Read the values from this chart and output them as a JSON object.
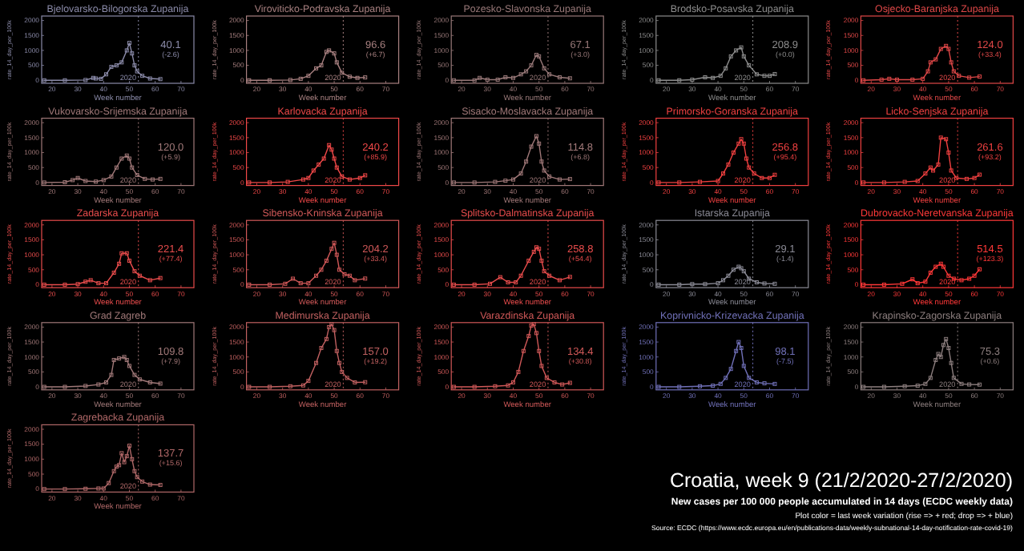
{
  "chart_data": [
    {
      "type": "line",
      "title": "Bjelovarsko-Bilogorska Zupanija",
      "xlabel": "Week number",
      "ylabel": "rate_14_day_per_100k",
      "xlim": [
        16,
        75
      ],
      "xticks": [
        20,
        30,
        40,
        50,
        60,
        70
      ],
      "ylim": [
        -100,
        2150
      ],
      "yticks": [
        0,
        500,
        1000,
        1500,
        2000
      ],
      "marker": "square",
      "ref_lines": [
        {
          "axis": "x",
          "value": 53.5,
          "line_style": "dotted"
        }
      ],
      "annotations": [
        "40.1",
        "(-2.6)",
        "2020"
      ],
      "series": [
        {
          "color": "#8a8aa8",
          "x": [
            17,
            25,
            33,
            36,
            37,
            39,
            41,
            43,
            45,
            47,
            49,
            50,
            51,
            52,
            53,
            55,
            58,
            62
          ],
          "values": [
            0,
            0,
            10,
            80,
            60,
            50,
            200,
            450,
            500,
            600,
            1000,
            1250,
            900,
            500,
            300,
            150,
            60,
            40.1
          ]
        }
      ]
    },
    {
      "type": "line",
      "title": "Viroviticko-Podravska Zupanija",
      "xlabel": "Week number",
      "ylabel": "rate_14_day_per_100k",
      "xlim": [
        16,
        75
      ],
      "xticks": [
        20,
        30,
        40,
        50,
        60,
        70
      ],
      "ylim": [
        -100,
        2150
      ],
      "yticks": [
        0,
        500,
        1000,
        1500,
        2000
      ],
      "marker": "square",
      "ref_lines": [
        {
          "axis": "x",
          "value": 53.5,
          "line_style": "dotted"
        }
      ],
      "annotations": [
        "96.6",
        "(+6.7)",
        "2020"
      ],
      "series": [
        {
          "color": "#a88080",
          "x": [
            17,
            25,
            33,
            37,
            40,
            43,
            45,
            47,
            48,
            50,
            51,
            53,
            56,
            59,
            62
          ],
          "values": [
            0,
            0,
            10,
            50,
            150,
            400,
            500,
            950,
            1000,
            900,
            600,
            250,
            120,
            80,
            96.6
          ]
        }
      ]
    },
    {
      "type": "line",
      "title": "Pozesko-Slavonska Zupanija",
      "xlabel": "Week number",
      "ylabel": "rate_14_day_per_100k",
      "xlim": [
        16,
        75
      ],
      "xticks": [
        20,
        30,
        40,
        50,
        60,
        70
      ],
      "ylim": [
        -100,
        2150
      ],
      "yticks": [
        0,
        500,
        1000,
        1500,
        2000
      ],
      "marker": "square",
      "ref_lines": [
        {
          "axis": "x",
          "value": 53.5,
          "line_style": "dotted"
        }
      ],
      "annotations": [
        "67.1",
        "(+3.0)",
        "2020"
      ],
      "series": [
        {
          "color": "#987878",
          "x": [
            17,
            25,
            27,
            30,
            34,
            37,
            40,
            43,
            45,
            47,
            49,
            50,
            52,
            54,
            58,
            62
          ],
          "values": [
            0,
            0,
            80,
            20,
            20,
            100,
            80,
            200,
            300,
            500,
            850,
            800,
            400,
            200,
            100,
            67.1
          ]
        }
      ]
    },
    {
      "type": "line",
      "title": "Brodsko-Posavska Zupanija",
      "xlabel": "Week number",
      "ylabel": "rate_14_day_per_100k",
      "xlim": [
        16,
        75
      ],
      "xticks": [
        20,
        30,
        40,
        50,
        60,
        70
      ],
      "ylim": [
        -100,
        2150
      ],
      "yticks": [
        0,
        500,
        1000,
        1500,
        2000
      ],
      "marker": "square",
      "ref_lines": [
        {
          "axis": "x",
          "value": 53.5,
          "line_style": "dotted"
        }
      ],
      "annotations": [
        "208.9",
        "(+0.0)",
        "2020"
      ],
      "series": [
        {
          "color": "#8c8c8c",
          "x": [
            17,
            25,
            30,
            35,
            38,
            41,
            43,
            45,
            47,
            49,
            50,
            52,
            55,
            58,
            60,
            62
          ],
          "values": [
            0,
            0,
            20,
            100,
            80,
            150,
            400,
            800,
            1000,
            1100,
            800,
            500,
            200,
            150,
            150,
            208.9
          ]
        }
      ]
    },
    {
      "type": "line",
      "title": "Osjecko-Baranjska Zupanija",
      "xlabel": "Week number",
      "ylabel": "rate_14_day_per_100k",
      "xlim": [
        16,
        75
      ],
      "xticks": [
        20,
        30,
        40,
        50,
        60,
        70
      ],
      "ylim": [
        -100,
        2150
      ],
      "yticks": [
        0,
        500,
        1000,
        1500,
        2000
      ],
      "marker": "square",
      "ref_lines": [
        {
          "axis": "x",
          "value": 53.5,
          "line_style": "dotted"
        }
      ],
      "annotations": [
        "124.0",
        "(+33.4)",
        "2020"
      ],
      "series": [
        {
          "color": "#e04848",
          "x": [
            17,
            24,
            27,
            30,
            36,
            40,
            42,
            43,
            45,
            47,
            49,
            50,
            51,
            52,
            54,
            58,
            62
          ],
          "values": [
            0,
            20,
            50,
            20,
            20,
            50,
            300,
            600,
            700,
            1050,
            1150,
            1050,
            600,
            300,
            150,
            90,
            124
          ]
        }
      ]
    },
    {
      "type": "line",
      "title": "Vukovarsko-Srijemska Zupanija",
      "xlabel": "Week number",
      "ylabel": "rate_14_day_per_100k",
      "xlim": [
        16,
        75
      ],
      "xticks": [
        20,
        30,
        40,
        50,
        60,
        70
      ],
      "ylim": [
        -100,
        2150
      ],
      "yticks": [
        0,
        500,
        1000,
        1500,
        2000
      ],
      "marker": "square",
      "ref_lines": [
        {
          "axis": "x",
          "value": 53.5,
          "line_style": "dotted"
        }
      ],
      "annotations": [
        "120.0",
        "(+5.9)",
        "2020"
      ],
      "series": [
        {
          "color": "#a07878",
          "x": [
            17,
            25,
            28,
            30,
            33,
            37,
            40,
            43,
            45,
            47,
            49,
            50,
            51,
            53,
            56,
            59,
            62
          ],
          "values": [
            0,
            10,
            80,
            150,
            50,
            30,
            80,
            200,
            500,
            800,
            900,
            800,
            500,
            250,
            120,
            100,
            120
          ]
        }
      ]
    },
    {
      "type": "line",
      "title": "Karlovacka Zupanija",
      "xlabel": "Week number",
      "ylabel": "rate_14_day_per_100k",
      "xlim": [
        16,
        75
      ],
      "xticks": [
        20,
        30,
        40,
        50,
        60,
        70
      ],
      "ylim": [
        -100,
        2150
      ],
      "yticks": [
        0,
        500,
        1000,
        1500,
        2000
      ],
      "marker": "square",
      "ref_lines": [
        {
          "axis": "x",
          "value": 53.5,
          "line_style": "dotted"
        }
      ],
      "annotations": [
        "240.2",
        "(+85.9)",
        "2020"
      ],
      "series": [
        {
          "color": "#f04848",
          "x": [
            17,
            25,
            32,
            38,
            40,
            42,
            44,
            46,
            48,
            49,
            50,
            51,
            53,
            56,
            60,
            62
          ],
          "values": [
            0,
            0,
            20,
            100,
            150,
            400,
            600,
            800,
            1250,
            1100,
            800,
            500,
            200,
            100,
            150,
            240.2
          ]
        }
      ]
    },
    {
      "type": "line",
      "title": "Sisacko-Moslavacka Zupanija",
      "xlabel": "Week number",
      "ylabel": "rate_14_day_per_100k",
      "xlim": [
        16,
        75
      ],
      "xticks": [
        20,
        30,
        40,
        50,
        60,
        70
      ],
      "ylim": [
        -100,
        2150
      ],
      "yticks": [
        0,
        500,
        1000,
        1500,
        2000
      ],
      "marker": "square",
      "ref_lines": [
        {
          "axis": "x",
          "value": 53.5,
          "line_style": "dotted"
        }
      ],
      "annotations": [
        "114.8",
        "(+6.8)",
        "2020"
      ],
      "series": [
        {
          "color": "#a07878",
          "x": [
            17,
            25,
            33,
            37,
            40,
            43,
            45,
            47,
            49,
            50,
            51,
            52,
            54,
            58,
            62
          ],
          "values": [
            0,
            0,
            20,
            60,
            100,
            300,
            700,
            1200,
            1550,
            1300,
            700,
            400,
            200,
            100,
            114.8
          ]
        }
      ]
    },
    {
      "type": "line",
      "title": "Primorsko-Goranska Zupanija",
      "xlabel": "Week number",
      "ylabel": "rate_14_day_per_100k",
      "xlim": [
        16,
        75
      ],
      "xticks": [
        20,
        30,
        40,
        50,
        60,
        70
      ],
      "ylim": [
        -100,
        2150
      ],
      "yticks": [
        0,
        500,
        1000,
        1500,
        2000
      ],
      "marker": "square",
      "ref_lines": [
        {
          "axis": "x",
          "value": 53.5,
          "line_style": "dotted"
        }
      ],
      "annotations": [
        "256.8",
        "(+95.4)",
        "2020"
      ],
      "series": [
        {
          "color": "#f04040",
          "x": [
            17,
            25,
            33,
            40,
            42,
            44,
            46,
            48,
            49,
            50,
            51,
            52,
            54,
            57,
            60,
            62
          ],
          "values": [
            0,
            0,
            20,
            50,
            300,
            600,
            1000,
            1300,
            1450,
            1300,
            800,
            500,
            300,
            150,
            150,
            256.8
          ]
        }
      ]
    },
    {
      "type": "line",
      "title": "Licko-Senjska Zupanija",
      "xlabel": "Week number",
      "ylabel": "rate_14_day_per_100k",
      "xlim": [
        16,
        75
      ],
      "xticks": [
        20,
        30,
        40,
        50,
        60,
        70
      ],
      "ylim": [
        -100,
        2150
      ],
      "yticks": [
        0,
        500,
        1000,
        1500,
        2000
      ],
      "marker": "square",
      "ref_lines": [
        {
          "axis": "x",
          "value": 53.5,
          "line_style": "dotted"
        }
      ],
      "annotations": [
        "261.6",
        "(+93.2)",
        "2020"
      ],
      "series": [
        {
          "color": "#f04040",
          "x": [
            17,
            25,
            33,
            38,
            41,
            43,
            44,
            46,
            47,
            49,
            50,
            51,
            53,
            57,
            60,
            62
          ],
          "values": [
            0,
            0,
            20,
            50,
            300,
            500,
            400,
            600,
            1500,
            1450,
            1000,
            400,
            150,
            120,
            150,
            261.6
          ]
        }
      ]
    },
    {
      "type": "line",
      "title": "Zadarska Zupanija",
      "xlabel": "Week number",
      "ylabel": "rate_14_day_per_100k",
      "xlim": [
        16,
        75
      ],
      "xticks": [
        20,
        30,
        40,
        50,
        60,
        70
      ],
      "ylim": [
        -100,
        2150
      ],
      "yticks": [
        0,
        500,
        1000,
        1500,
        2000
      ],
      "marker": "square",
      "ref_lines": [
        {
          "axis": "x",
          "value": 53.5,
          "line_style": "dotted"
        }
      ],
      "annotations": [
        "221.4",
        "(+77.4)",
        "2020"
      ],
      "series": [
        {
          "color": "#e84c4c",
          "x": [
            17,
            25,
            30,
            33,
            35,
            38,
            41,
            44,
            46,
            47,
            49,
            50,
            52,
            54,
            58,
            62
          ],
          "values": [
            0,
            0,
            20,
            100,
            150,
            50,
            50,
            400,
            700,
            1050,
            1050,
            800,
            450,
            300,
            150,
            221.4
          ]
        }
      ]
    },
    {
      "type": "line",
      "title": "Sibensko-Kninska Zupanija",
      "xlabel": "Week number",
      "ylabel": "rate_14_day_per_100k",
      "xlim": [
        16,
        75
      ],
      "xticks": [
        20,
        30,
        40,
        50,
        60,
        70
      ],
      "ylim": [
        -100,
        2150
      ],
      "yticks": [
        0,
        500,
        1000,
        1500,
        2000
      ],
      "marker": "square",
      "ref_lines": [
        {
          "axis": "x",
          "value": 53.5,
          "line_style": "dotted"
        }
      ],
      "annotations": [
        "204.2",
        "(+33.4)",
        "2020"
      ],
      "series": [
        {
          "color": "#d05858",
          "x": [
            17,
            25,
            31,
            34,
            37,
            40,
            43,
            45,
            47,
            49,
            50,
            51,
            52,
            54,
            56,
            58,
            62
          ],
          "values": [
            0,
            0,
            30,
            200,
            50,
            50,
            300,
            500,
            800,
            1200,
            1400,
            1000,
            500,
            350,
            300,
            150,
            204.2
          ]
        }
      ]
    },
    {
      "type": "line",
      "title": "Splitsko-Dalmatinska Zupanija",
      "xlabel": "Week number",
      "ylabel": "rate_14_day_per_100k",
      "xlim": [
        16,
        75
      ],
      "xticks": [
        20,
        30,
        40,
        50,
        60,
        70
      ],
      "ylim": [
        -100,
        2150
      ],
      "yticks": [
        0,
        500,
        1000,
        1500,
        2000
      ],
      "marker": "square",
      "ref_lines": [
        {
          "axis": "x",
          "value": 53.5,
          "line_style": "dotted"
        }
      ],
      "annotations": [
        "258.8",
        "(+54.4)",
        "2020"
      ],
      "series": [
        {
          "color": "#e84c4c",
          "x": [
            17,
            25,
            31,
            35,
            38,
            41,
            43,
            46,
            48,
            49,
            50,
            51,
            52,
            54,
            58,
            62
          ],
          "values": [
            0,
            0,
            30,
            250,
            80,
            80,
            300,
            800,
            1100,
            1250,
            1200,
            800,
            450,
            300,
            150,
            258.8
          ]
        }
      ]
    },
    {
      "type": "line",
      "title": "Istarska Zupanija",
      "xlabel": "Week number",
      "ylabel": "rate_14_day_per_100k",
      "xlim": [
        16,
        75
      ],
      "xticks": [
        20,
        30,
        40,
        50,
        60,
        70
      ],
      "ylim": [
        -100,
        2150
      ],
      "yticks": [
        0,
        500,
        1000,
        1500,
        2000
      ],
      "marker": "square",
      "ref_lines": [
        {
          "axis": "x",
          "value": 53.5,
          "line_style": "dotted"
        }
      ],
      "annotations": [
        "29.1",
        "(-1.4)",
        "2020"
      ],
      "series": [
        {
          "color": "#8a8a95",
          "x": [
            17,
            25,
            30,
            35,
            40,
            42,
            44,
            46,
            48,
            49,
            50,
            52,
            55,
            58,
            62
          ],
          "values": [
            0,
            0,
            20,
            20,
            50,
            150,
            300,
            500,
            600,
            550,
            450,
            200,
            80,
            40,
            29.1
          ]
        }
      ]
    },
    {
      "type": "line",
      "title": "Dubrovacko-Neretvanska Zupanija",
      "xlabel": "Week number",
      "ylabel": "rate_14_day_per_100k",
      "xlim": [
        16,
        75
      ],
      "xticks": [
        20,
        30,
        40,
        50,
        60,
        70
      ],
      "ylim": [
        -100,
        2150
      ],
      "yticks": [
        0,
        500,
        1000,
        1500,
        2000
      ],
      "marker": "square",
      "ref_lines": [
        {
          "axis": "x",
          "value": 53.5,
          "line_style": "dotted"
        }
      ],
      "annotations": [
        "514.5",
        "(+123.3)",
        "2020"
      ],
      "series": [
        {
          "color": "#ff3838",
          "x": [
            17,
            25,
            32,
            36,
            38,
            41,
            43,
            45,
            47,
            48,
            50,
            52,
            55,
            58,
            60,
            62
          ],
          "values": [
            0,
            0,
            30,
            180,
            50,
            100,
            400,
            600,
            700,
            600,
            300,
            200,
            150,
            200,
            300,
            514.5
          ]
        }
      ]
    },
    {
      "type": "line",
      "title": "Grad Zagreb",
      "xlabel": "Week number",
      "ylabel": "rate_14_day_per_100k",
      "xlim": [
        16,
        75
      ],
      "xticks": [
        20,
        30,
        40,
        50,
        60,
        70
      ],
      "ylim": [
        -100,
        2150
      ],
      "yticks": [
        0,
        500,
        1000,
        1500,
        2000
      ],
      "marker": "square",
      "ref_lines": [
        {
          "axis": "x",
          "value": 53.5,
          "line_style": "dotted"
        }
      ],
      "annotations": [
        "109.8",
        "(+7.9)",
        "2020"
      ],
      "series": [
        {
          "color": "#a07878",
          "x": [
            17,
            25,
            33,
            38,
            41,
            43,
            44,
            46,
            48,
            49,
            50,
            52,
            54,
            58,
            62
          ],
          "values": [
            0,
            0,
            30,
            80,
            150,
            400,
            900,
            950,
            1000,
            900,
            700,
            400,
            250,
            150,
            109.8
          ]
        }
      ]
    },
    {
      "type": "line",
      "title": "Medimurska Zupanija",
      "xlabel": "Week number",
      "ylabel": "rate_14_day_per_100k",
      "xlim": [
        16,
        75
      ],
      "xticks": [
        20,
        30,
        40,
        50,
        60,
        70
      ],
      "ylim": [
        -100,
        2150
      ],
      "yticks": [
        0,
        500,
        1000,
        1500,
        2000
      ],
      "marker": "square",
      "ref_lines": [
        {
          "axis": "x",
          "value": 53.5,
          "line_style": "dotted"
        }
      ],
      "annotations": [
        "157.0",
        "(+19.2)",
        "2020"
      ],
      "series": [
        {
          "color": "#c06060",
          "x": [
            17,
            25,
            33,
            38,
            40,
            43,
            45,
            47,
            48,
            49,
            50,
            51,
            52,
            53,
            55,
            58,
            62
          ],
          "values": [
            0,
            0,
            20,
            50,
            200,
            800,
            1300,
            1600,
            2000,
            2100,
            1900,
            1200,
            800,
            500,
            300,
            150,
            157
          ]
        }
      ]
    },
    {
      "type": "line",
      "title": "Varazdinska Zupanija",
      "xlabel": "Week number",
      "ylabel": "rate_14_day_per_100k",
      "xlim": [
        16,
        75
      ],
      "xticks": [
        20,
        30,
        40,
        50,
        60,
        70
      ],
      "ylim": [
        -100,
        2150
      ],
      "yticks": [
        0,
        500,
        1000,
        1500,
        2000
      ],
      "marker": "square",
      "ref_lines": [
        {
          "axis": "x",
          "value": 53.5,
          "line_style": "dotted"
        }
      ],
      "annotations": [
        "134.4",
        "(+30.8)",
        "2020"
      ],
      "series": [
        {
          "color": "#d05858",
          "x": [
            17,
            25,
            33,
            38,
            40,
            42,
            44,
            46,
            47,
            48,
            49,
            50,
            51,
            53,
            56,
            59,
            62
          ],
          "values": [
            0,
            0,
            20,
            50,
            150,
            500,
            1200,
            1700,
            2050,
            2100,
            1800,
            1200,
            700,
            300,
            150,
            80,
            134.4
          ]
        }
      ]
    },
    {
      "type": "line",
      "title": "Koprivnicko-Krizevacka Zupanija",
      "xlabel": "Week number",
      "ylabel": "rate_14_day_per_100k",
      "xlim": [
        16,
        75
      ],
      "xticks": [
        20,
        30,
        40,
        50,
        60,
        70
      ],
      "ylim": [
        -100,
        2150
      ],
      "yticks": [
        0,
        500,
        1000,
        1500,
        2000
      ],
      "marker": "square",
      "ref_lines": [
        {
          "axis": "x",
          "value": 53.5,
          "line_style": "dotted"
        }
      ],
      "annotations": [
        "98.1",
        "(-7.5)",
        "2020"
      ],
      "series": [
        {
          "color": "#7070b8",
          "x": [
            17,
            25,
            33,
            38,
            41,
            43,
            45,
            47,
            48,
            49,
            50,
            52,
            55,
            58,
            62
          ],
          "values": [
            0,
            0,
            20,
            40,
            100,
            300,
            600,
            1200,
            1500,
            1300,
            700,
            300,
            150,
            120,
            98.1
          ]
        }
      ]
    },
    {
      "type": "line",
      "title": "Krapinsko-Zagorska Zupanija",
      "xlabel": "Week number",
      "ylabel": "rate_14_day_per_100k",
      "xlim": [
        16,
        75
      ],
      "xticks": [
        20,
        30,
        40,
        50,
        60,
        70
      ],
      "ylim": [
        -100,
        2150
      ],
      "yticks": [
        0,
        500,
        1000,
        1500,
        2000
      ],
      "marker": "square",
      "ref_lines": [
        {
          "axis": "x",
          "value": 53.5,
          "line_style": "dotted"
        }
      ],
      "annotations": [
        "75.3",
        "(+0.6)",
        "2020"
      ],
      "series": [
        {
          "color": "#8c7e7e",
          "x": [
            17,
            25,
            33,
            38,
            41,
            43,
            45,
            46,
            47,
            48,
            49,
            50,
            51,
            52,
            55,
            58,
            62
          ],
          "values": [
            0,
            0,
            20,
            40,
            100,
            300,
            900,
            1100,
            1000,
            1400,
            1600,
            1300,
            800,
            300,
            100,
            80,
            75.3
          ]
        }
      ]
    },
    {
      "type": "line",
      "title": "Zagrebacka Zupanija",
      "xlabel": "Week number",
      "ylabel": "rate_14_day_per_100k",
      "xlim": [
        16,
        75
      ],
      "xticks": [
        20,
        30,
        40,
        50,
        60,
        70
      ],
      "ylim": [
        -100,
        2150
      ],
      "yticks": [
        0,
        500,
        1000,
        1500,
        2000
      ],
      "marker": "square",
      "ref_lines": [
        {
          "axis": "x",
          "value": 53.5,
          "line_style": "dotted"
        }
      ],
      "annotations": [
        "137.7",
        "(+15.6)",
        "2020"
      ],
      "series": [
        {
          "color": "#b06868",
          "x": [
            17,
            25,
            33,
            38,
            40,
            42,
            44,
            45,
            46,
            47,
            48,
            49,
            50,
            51,
            52,
            53,
            55,
            58,
            62
          ],
          "values": [
            0,
            0,
            10,
            20,
            20,
            200,
            600,
            750,
            800,
            1200,
            900,
            1100,
            1450,
            1000,
            600,
            400,
            250,
            150,
            137.7
          ]
        }
      ]
    },
    {
      "type": "other",
      "title": "Croatia, week 9 (21/2/2020-27/2/2020)",
      "subtitle": "New cases per 100 000 people accumulated in 14 days (ECDC weekly data)",
      "annotations": [
        "Plot color = last week variation (rise => + red; drop => + blue)",
        "Source: ECDC (https://www.ecdc.europa.eu/en/publications-data/weekly-subnational-14-day-notification-rate-covid-19)"
      ]
    }
  ]
}
